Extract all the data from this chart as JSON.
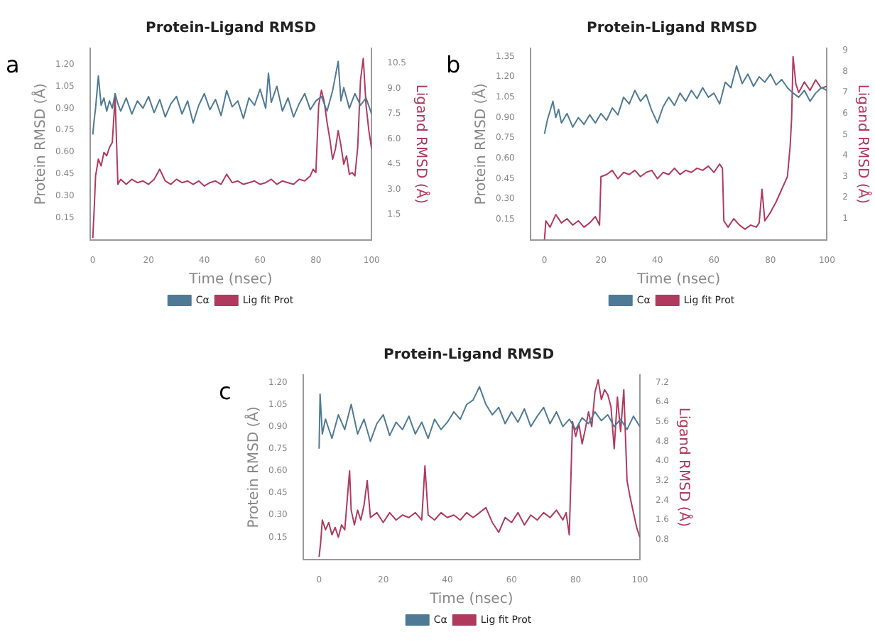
{
  "chart_data": [
    {
      "type": "line",
      "title": "Protein-Ligand RMSD",
      "xlabel": "Time (nsec)",
      "ylabel": "Protein RMSD (Å)",
      "y2label": "Ligand RMSD (Å)",
      "annotations": [
        "a"
      ],
      "legend": "bottom",
      "marker": "none",
      "xlim": [
        -1,
        100
      ],
      "xticks": [
        0,
        20,
        40,
        60,
        80,
        100
      ],
      "ylim": [
        0,
        1.31
      ],
      "yticks": [
        0.15,
        {
          "value": 0.3,
          "label": "0.30"
        },
        0.45,
        {
          "value": 0.6,
          "label": "0.60"
        },
        0.75,
        {
          "value": 0.9,
          "label": "0.90"
        },
        1.05,
        {
          "value": 1.2,
          "label": "1.20"
        }
      ],
      "y2lim": [
        0,
        11.4
      ],
      "y2ticks": [
        1.5,
        {
          "value": 3,
          "label": "3.0"
        },
        4.5,
        {
          "value": 6,
          "label": "6.0"
        },
        7.5,
        {
          "value": 9,
          "label": "9.0"
        },
        10.5
      ],
      "series": [
        {
          "name": "Cα",
          "color": "#4f7a96",
          "x": [
            0,
            0.5,
            1,
            2,
            3,
            4,
            5,
            6,
            7,
            8,
            9,
            10,
            12,
            14,
            16,
            18,
            20,
            22,
            24,
            26,
            28,
            30,
            32,
            34,
            36,
            38,
            40,
            42,
            44,
            46,
            48,
            50,
            52,
            54,
            56,
            58,
            60,
            62,
            63,
            64,
            66,
            68,
            70,
            72,
            74,
            76,
            78,
            80,
            82,
            84,
            86,
            88,
            89,
            90,
            92,
            94,
            96,
            98,
            100
          ],
          "values": [
            0.72,
            0.82,
            0.9,
            1.12,
            0.92,
            0.97,
            0.88,
            0.95,
            0.9,
            1.0,
            0.93,
            0.88,
            0.97,
            0.86,
            0.95,
            0.9,
            0.98,
            0.87,
            0.96,
            0.84,
            0.93,
            0.98,
            0.86,
            0.95,
            0.8,
            0.92,
            1.0,
            0.89,
            0.96,
            0.85,
            1.02,
            0.91,
            0.95,
            0.83,
            0.97,
            0.92,
            1.03,
            0.9,
            1.14,
            0.94,
            1.05,
            0.88,
            0.97,
            0.84,
            0.93,
            1.0,
            0.89,
            0.95,
            0.98,
            0.88,
            1.02,
            1.22,
            0.95,
            1.04,
            0.9,
            1.0,
            0.92,
            0.97,
            0.86
          ]
        },
        {
          "name": "Lig fit Prot",
          "color": "#b03a5e",
          "axis": "y2",
          "x": [
            0,
            0.5,
            1,
            2,
            3,
            4,
            5,
            6,
            7,
            8,
            9,
            10,
            12,
            14,
            16,
            18,
            20,
            22,
            24,
            26,
            28,
            30,
            32,
            34,
            36,
            38,
            40,
            42,
            44,
            46,
            48,
            50,
            52,
            54,
            56,
            58,
            60,
            62,
            64,
            66,
            68,
            70,
            72,
            74,
            76,
            78,
            79,
            80,
            81,
            82,
            83,
            84,
            85,
            86,
            87,
            88,
            89,
            90,
            91,
            92,
            93,
            94,
            95,
            96,
            97,
            98,
            99,
            100
          ],
          "values": [
            0.1,
            1.8,
            3.8,
            4.8,
            4.4,
            5.2,
            5.0,
            5.5,
            5.8,
            8.5,
            3.3,
            3.6,
            3.3,
            3.6,
            3.4,
            3.5,
            3.3,
            3.6,
            4.2,
            3.5,
            3.3,
            3.6,
            3.4,
            3.5,
            3.3,
            3.5,
            3.2,
            3.4,
            3.5,
            3.3,
            3.9,
            3.4,
            3.5,
            3.3,
            3.4,
            3.5,
            3.3,
            3.4,
            3.6,
            3.3,
            3.5,
            3.4,
            3.3,
            3.6,
            3.5,
            3.8,
            4.2,
            4.0,
            8.0,
            8.9,
            8.2,
            7.0,
            6.0,
            4.8,
            5.4,
            6.5,
            5.6,
            4.5,
            5.0,
            3.9,
            4.0,
            3.8,
            5.5,
            9.5,
            10.8,
            8.0,
            6.5,
            5.4
          ]
        }
      ]
    },
    {
      "type": "line",
      "title": "Protein-Ligand RMSD",
      "xlabel": "Time (nsec)",
      "ylabel": "Protein RMSD (Å)",
      "y2label": "Ligand RMSD (Å)",
      "annotations": [
        "b"
      ],
      "legend": "bottom",
      "marker": "none",
      "xlim": [
        -5,
        100
      ],
      "xticks": [
        0,
        20,
        40,
        60,
        80,
        100
      ],
      "ylim": [
        0,
        1.41
      ],
      "yticks": [
        0.15,
        {
          "value": 0.3,
          "label": "0.30"
        },
        0.45,
        {
          "value": 0.6,
          "label": "0.60"
        },
        0.75,
        {
          "value": 0.9,
          "label": "0.90"
        },
        1.05,
        {
          "value": 1.2,
          "label": "1.20"
        },
        1.35
      ],
      "y2lim": [
        0,
        9.1
      ],
      "y2ticks": [
        1,
        2,
        3,
        4,
        5,
        6,
        7,
        8,
        9
      ],
      "series": [
        {
          "name": "Cα",
          "color": "#4f7a96",
          "x": [
            0,
            1,
            2,
            3,
            4,
            5,
            6,
            8,
            10,
            12,
            14,
            16,
            18,
            20,
            22,
            24,
            26,
            28,
            30,
            32,
            34,
            36,
            38,
            40,
            42,
            44,
            46,
            48,
            50,
            52,
            54,
            56,
            58,
            60,
            62,
            64,
            66,
            68,
            70,
            72,
            74,
            76,
            78,
            80,
            82,
            84,
            86,
            88,
            90,
            92,
            94,
            96,
            98,
            100
          ],
          "values": [
            0.78,
            0.88,
            0.95,
            1.02,
            0.9,
            0.96,
            0.86,
            0.93,
            0.83,
            0.9,
            0.85,
            0.92,
            0.86,
            0.93,
            0.88,
            0.97,
            0.92,
            1.05,
            1.0,
            1.1,
            1.02,
            1.07,
            0.95,
            0.86,
            0.98,
            1.05,
            0.99,
            1.08,
            1.02,
            1.1,
            1.04,
            1.12,
            1.05,
            1.08,
            1.0,
            1.16,
            1.12,
            1.28,
            1.15,
            1.22,
            1.13,
            1.2,
            1.16,
            1.22,
            1.14,
            1.18,
            1.12,
            1.08,
            1.05,
            1.1,
            1.02,
            1.08,
            1.12,
            1.1
          ]
        },
        {
          "name": "Lig fit Prot",
          "color": "#b03a5e",
          "axis": "y2",
          "x": [
            0,
            0.5,
            2,
            4,
            6,
            8,
            10,
            12,
            14,
            16,
            18,
            19.5,
            20,
            22,
            24,
            26,
            28,
            30,
            32,
            34,
            36,
            38,
            40,
            42,
            44,
            46,
            48,
            50,
            52,
            54,
            56,
            58,
            60,
            62,
            63,
            63.5,
            65,
            67,
            69,
            71,
            73,
            75,
            76,
            77,
            78,
            80,
            82,
            84,
            86,
            87,
            87.5,
            88,
            89,
            90,
            92,
            94,
            96,
            98,
            100
          ],
          "values": [
            0.0,
            0.9,
            0.6,
            1.2,
            0.8,
            1.0,
            0.7,
            0.9,
            0.6,
            0.8,
            1.1,
            0.7,
            3.0,
            3.1,
            3.3,
            2.9,
            3.2,
            3.1,
            3.3,
            3.0,
            3.2,
            3.3,
            2.9,
            3.2,
            3.1,
            3.4,
            3.1,
            3.3,
            3.2,
            3.4,
            3.3,
            3.5,
            3.2,
            3.6,
            3.4,
            0.9,
            0.6,
            1.0,
            0.7,
            0.5,
            0.7,
            0.6,
            0.8,
            2.4,
            0.9,
            1.3,
            1.8,
            2.4,
            3.0,
            4.5,
            5.8,
            8.7,
            7.4,
            7.0,
            7.5,
            7.1,
            7.6,
            7.2,
            7.3
          ]
        }
      ]
    },
    {
      "type": "line",
      "title": "Protein-Ligand RMSD",
      "xlabel": "Time (nsec)",
      "ylabel": "Protein RMSD (Å)",
      "y2label": "Ligand RMSD (Å)",
      "annotations": [
        "c"
      ],
      "legend": "bottom",
      "marker": "none",
      "xlim": [
        -5,
        100
      ],
      "xticks": [
        0,
        20,
        40,
        60,
        80,
        100
      ],
      "ylim": [
        0,
        1.25
      ],
      "yticks": [
        0.15,
        {
          "value": 0.3,
          "label": "0.30"
        },
        0.45,
        {
          "value": 0.6,
          "label": "0.60"
        },
        0.75,
        {
          "value": 0.9,
          "label": "0.90"
        },
        1.05,
        {
          "value": 1.2,
          "label": "1.20"
        }
      ],
      "y2lim": [
        0,
        7.5
      ],
      "y2ticks": [
        0.8,
        1.6,
        2.4,
        3.2,
        {
          "value": 4,
          "label": "4.0"
        },
        4.8,
        5.6,
        6.4,
        7.2
      ],
      "series": [
        {
          "name": "Cα",
          "color": "#4f7a96",
          "x": [
            0,
            0.3,
            1,
            2,
            4,
            6,
            8,
            10,
            12,
            14,
            16,
            18,
            20,
            22,
            24,
            26,
            28,
            30,
            32,
            34,
            36,
            38,
            40,
            42,
            44,
            46,
            48,
            50,
            52,
            54,
            56,
            58,
            60,
            62,
            64,
            66,
            68,
            70,
            72,
            74,
            76,
            78,
            80,
            82,
            84,
            86,
            88,
            90,
            92,
            94,
            96,
            98,
            100
          ],
          "values": [
            0.75,
            1.12,
            0.85,
            0.95,
            0.82,
            0.98,
            0.88,
            1.05,
            0.85,
            0.95,
            0.8,
            0.92,
            0.98,
            0.84,
            0.93,
            0.88,
            0.97,
            0.85,
            0.93,
            0.82,
            0.95,
            0.88,
            0.93,
            1.0,
            0.95,
            1.05,
            1.08,
            1.17,
            1.05,
            0.98,
            1.03,
            0.92,
            1.0,
            0.93,
            1.02,
            0.9,
            0.97,
            1.03,
            0.92,
            1.0,
            0.9,
            0.95,
            0.88,
            0.96,
            0.92,
            1.0,
            0.94,
            0.98,
            0.9,
            0.95,
            0.88,
            0.97,
            0.9
          ]
        },
        {
          "name": "Lig fit Prot",
          "color": "#b03a5e",
          "axis": "y2",
          "x": [
            0,
            0.5,
            1,
            2,
            3,
            4,
            5,
            6,
            7,
            8,
            9,
            9.5,
            10,
            11,
            12,
            13,
            14,
            15,
            16,
            18,
            20,
            22,
            24,
            26,
            28,
            30,
            32,
            33,
            34,
            36,
            38,
            40,
            42,
            44,
            46,
            48,
            50,
            52,
            54,
            56,
            58,
            60,
            62,
            64,
            66,
            68,
            70,
            72,
            74,
            76,
            77,
            78,
            79,
            80,
            81,
            82,
            83,
            84,
            85,
            86,
            87,
            88,
            89,
            90,
            91,
            92,
            93,
            94,
            95,
            96,
            97,
            98,
            99,
            100
          ],
          "values": [
            0.1,
            0.7,
            1.6,
            1.2,
            1.5,
            1.0,
            1.3,
            0.9,
            1.4,
            1.2,
            2.8,
            3.6,
            2.0,
            1.4,
            2.0,
            1.6,
            2.2,
            3.2,
            1.7,
            1.9,
            1.5,
            1.9,
            1.6,
            1.8,
            1.7,
            1.9,
            1.6,
            3.8,
            1.8,
            1.6,
            1.9,
            1.7,
            1.8,
            1.6,
            1.9,
            1.7,
            1.9,
            2.1,
            1.5,
            1.1,
            1.7,
            1.5,
            1.9,
            1.4,
            1.8,
            1.6,
            1.9,
            1.7,
            2.0,
            1.6,
            1.9,
            1.0,
            5.6,
            5.0,
            5.5,
            4.7,
            5.3,
            6.0,
            5.4,
            6.8,
            7.3,
            6.5,
            6.9,
            6.7,
            6.2,
            4.5,
            6.6,
            5.2,
            6.9,
            3.2,
            2.5,
            1.9,
            1.3,
            0.9
          ]
        }
      ]
    }
  ]
}
